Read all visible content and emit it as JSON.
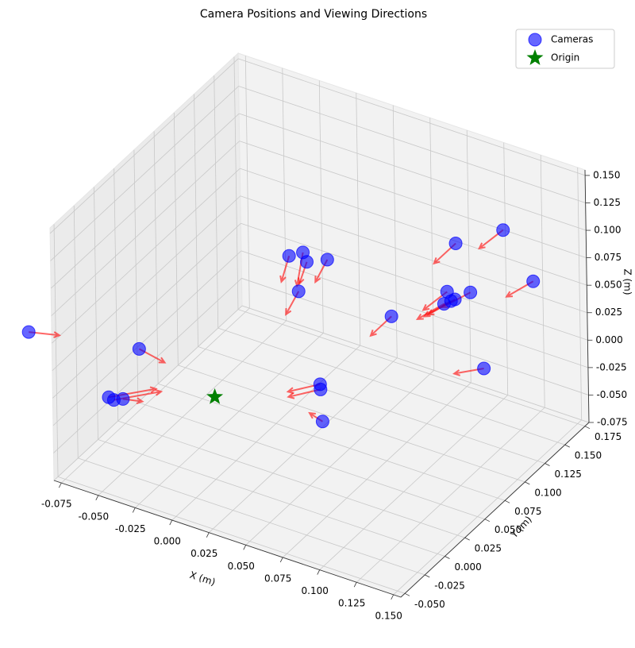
{
  "chart_data": {
    "type": "scatter3d",
    "title": "Camera Positions and Viewing Directions",
    "xlabel": "X (m)",
    "ylabel": "Y (m)",
    "zlabel": "Z (m)",
    "xlim": [
      -0.08,
      0.155
    ],
    "ylim": [
      -0.055,
      0.18
    ],
    "zlim": [
      -0.075,
      0.155
    ],
    "xticks": [
      -0.075,
      {
        "value": -0.05,
        "label": "-0.050"
      },
      -0.025,
      {
        "value": 0,
        "label": "0.000"
      },
      0.025,
      {
        "value": 0.05,
        "label": "0.050"
      },
      0.075,
      {
        "value": 0.1,
        "label": "0.100"
      },
      0.125,
      {
        "value": 0.15,
        "label": "0.150"
      }
    ],
    "yticks": [
      {
        "value": -0.05,
        "label": "-0.050"
      },
      -0.025,
      {
        "value": 0,
        "label": "0.000"
      },
      0.025,
      {
        "value": 0.05,
        "label": "0.050"
      },
      0.075,
      {
        "value": 0.1,
        "label": "0.100"
      },
      0.125,
      {
        "value": 0.15,
        "label": "0.150"
      },
      0.175
    ],
    "zticks": [
      -0.075,
      {
        "value": -0.05,
        "label": "-0.050"
      },
      -0.025,
      {
        "value": 0,
        "label": "0.000"
      },
      0.025,
      {
        "value": 0.05,
        "label": "0.050"
      },
      0.075,
      {
        "value": 0.1,
        "label": "0.100"
      },
      0.125,
      {
        "value": 0.15,
        "label": "0.150"
      }
    ],
    "grid": true,
    "legend": "upper right",
    "arrow_color": "red",
    "series": [
      {
        "name": "Cameras",
        "color": "blue",
        "marker": "circle",
        "x": [
          -0.11,
          -0.046,
          -0.049,
          -0.045,
          -0.041,
          0.042,
          0.045,
          0.056,
          -0.001,
          0.004,
          0.011,
          0.02,
          0.009,
          0.062,
          0.096,
          0.119,
          0.134,
          0.083,
          0.088,
          0.09,
          0.091,
          0.095,
          0.115
        ],
        "y": [
          -0.029,
          -0.009,
          -0.042,
          -0.043,
          -0.039,
          0.054,
          0.049,
          0.031,
          0.096,
          0.104,
          0.096,
          0.105,
          0.089,
          0.107,
          0.126,
          0.143,
          0.152,
          0.138,
          0.125,
          0.13,
          0.133,
          0.145,
          0.124
        ],
        "z": [
          0.029,
          0.029,
          0.006,
          0.006,
          0.006,
          -0.006,
          -0.006,
          -0.018,
          0.063,
          0.063,
          0.063,
          0.063,
          0.04,
          0.029,
          0.098,
          0.109,
          0.063,
          0.04,
          0.04,
          0.04,
          0.04,
          0.04,
          -0.006
        ],
        "u": [
          0.017,
          0.02,
          0.019,
          0.019,
          0.011,
          -0.012,
          -0.012,
          -0.011,
          0.01,
          0.015,
          0.008,
          0.006,
          0.006,
          0.0,
          0.0,
          -0.002,
          -0.005,
          -0.002,
          -0.005,
          -0.005,
          -0.005,
          -0.006,
          -0.012
        ],
        "v": [
          0.007,
          -0.005,
          0.024,
          0.024,
          0.004,
          -0.018,
          -0.018,
          0.004,
          -0.028,
          -0.035,
          -0.024,
          -0.026,
          -0.027,
          -0.026,
          -0.027,
          -0.026,
          -0.024,
          -0.026,
          -0.024,
          -0.024,
          -0.024,
          -0.024,
          -0.015
        ],
        "w": [
          0,
          0,
          0,
          0,
          0,
          0,
          0,
          0,
          0,
          0,
          0,
          0,
          0,
          0,
          0,
          0,
          0,
          0,
          0,
          0,
          0,
          0,
          0
        ]
      },
      {
        "name": "Origin",
        "color": "green",
        "marker": "star",
        "x": [
          0
        ],
        "y": [
          0
        ],
        "z": [
          0
        ]
      }
    ]
  }
}
